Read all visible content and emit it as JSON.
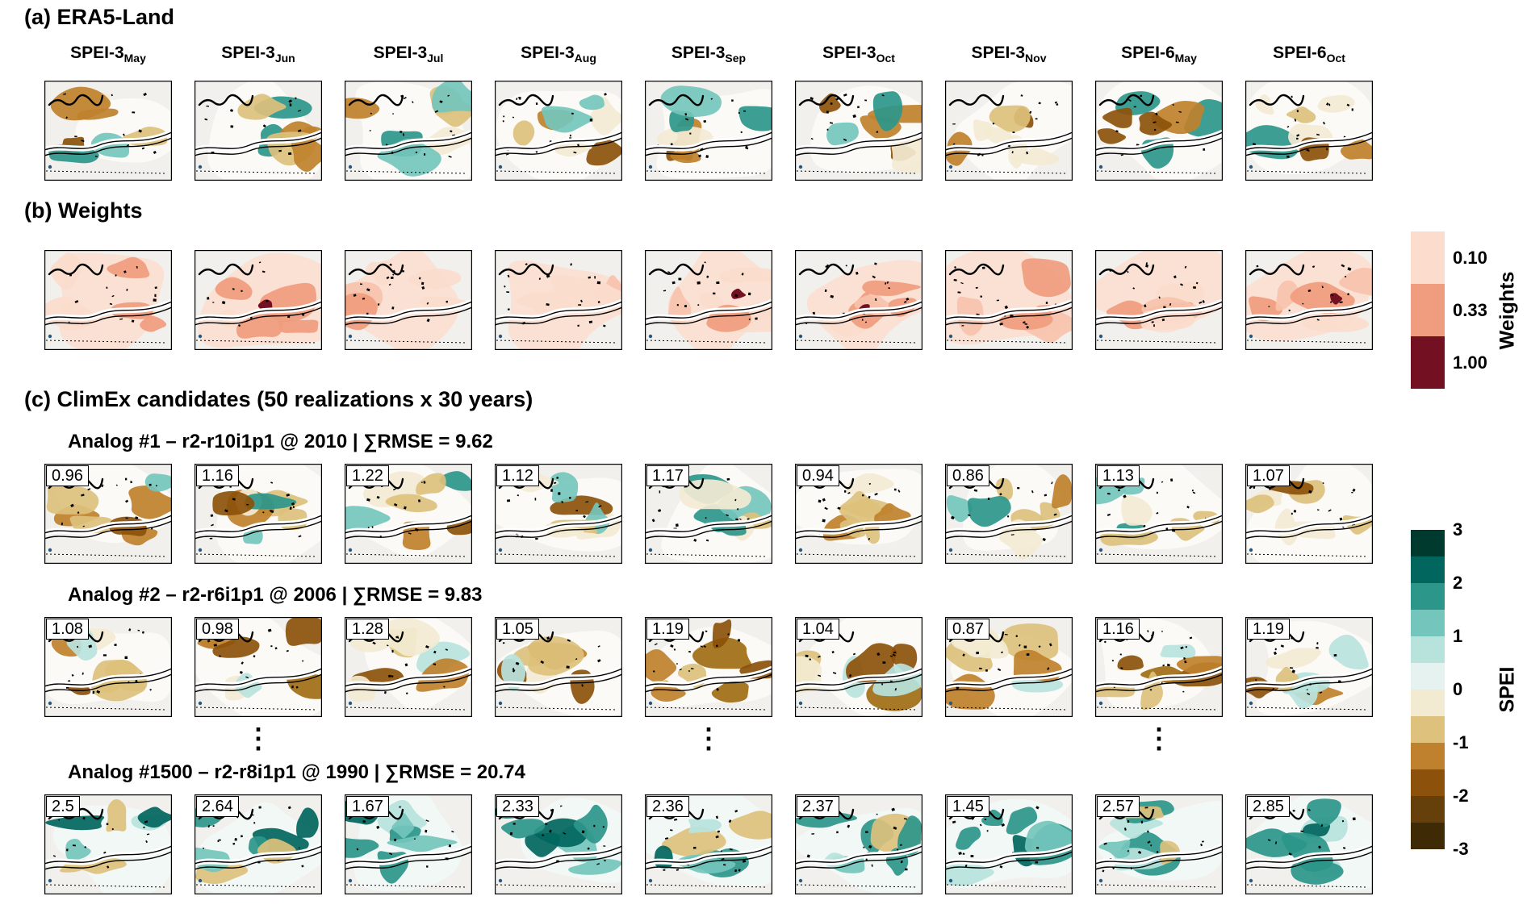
{
  "figure": {
    "panel_a_title": "(a) ERA5-Land",
    "panel_b_title": "(b) Weights",
    "panel_c_title": "(c) ClimEx candidates (50 realizations x 30 years)",
    "ellipsis": "⋮"
  },
  "columns": [
    {
      "base": "SPEI-3",
      "sub": "May"
    },
    {
      "base": "SPEI-3",
      "sub": "Jun"
    },
    {
      "base": "SPEI-3",
      "sub": "Jul"
    },
    {
      "base": "SPEI-3",
      "sub": "Aug"
    },
    {
      "base": "SPEI-3",
      "sub": "Sep"
    },
    {
      "base": "SPEI-3",
      "sub": "Oct"
    },
    {
      "base": "SPEI-3",
      "sub": "Nov"
    },
    {
      "base": "SPEI-6",
      "sub": "May"
    },
    {
      "base": "SPEI-6",
      "sub": "Oct"
    }
  ],
  "analogs": [
    {
      "label": "Analog #1 – r2-r10i1p1 @ 2010 | ∑RMSE = 9.62",
      "rmse": [
        "0.96",
        "1.16",
        "1.22",
        "1.12",
        "1.17",
        "0.94",
        "0.86",
        "1.13",
        "1.07"
      ]
    },
    {
      "label": "Analog #2 – r2-r6i1p1 @ 2006 | ∑RMSE = 9.83",
      "rmse": [
        "1.08",
        "0.98",
        "1.28",
        "1.05",
        "1.19",
        "1.04",
        "0.87",
        "1.16",
        "1.19"
      ]
    },
    {
      "label": "Analog #1500 – r2-r8i1p1 @ 1990 | ∑RMSE = 20.74",
      "rmse": [
        "2.5",
        "2.64",
        "1.67",
        "2.33",
        "2.36",
        "2.37",
        "1.45",
        "2.57",
        "2.85"
      ]
    }
  ],
  "colorbars": {
    "weights": {
      "label": "Weights",
      "ticks": [
        "0.10",
        "0.33",
        "1.00"
      ],
      "colors": [
        "#fbdccd",
        "#f09c7e",
        "#731022"
      ]
    },
    "spei": {
      "label": "SPEI",
      "ticks": [
        "3",
        "2",
        "1",
        "0",
        "-1",
        "-2",
        "-3"
      ],
      "colors": [
        "#00392e",
        "#01665e",
        "#2d968a",
        "#74c6bc",
        "#b8e3dd",
        "#e6f2ef",
        "#f3ead2",
        "#ddc17c",
        "#bf812d",
        "#8c510a",
        "#66400a",
        "#3f2a06"
      ]
    }
  },
  "chart_data": {
    "type": "heatmap",
    "panels": [
      {
        "id": "a",
        "title": "(a) ERA5-Land",
        "maps": [
          "SPEI-3 May",
          "SPEI-3 Jun",
          "SPEI-3 Jul",
          "SPEI-3 Aug",
          "SPEI-3 Sep",
          "SPEI-3 Oct",
          "SPEI-3 Nov",
          "SPEI-6 May",
          "SPEI-6 Oct"
        ],
        "variable": "SPEI",
        "value_range": [
          -3,
          3
        ]
      },
      {
        "id": "b",
        "title": "(b) Weights",
        "variable": "Weights",
        "levels": [
          0.1,
          0.33,
          1.0
        ]
      },
      {
        "id": "c",
        "title": "(c) ClimEx candidates (50 realizations x 30 years)",
        "analogs": [
          {
            "rank": 1,
            "member": "r2-r10i1p1",
            "year": 2010,
            "sum_rmse": 9.62,
            "rmse_per_map": [
              0.96,
              1.16,
              1.22,
              1.12,
              1.17,
              0.94,
              0.86,
              1.13,
              1.07
            ]
          },
          {
            "rank": 2,
            "member": "r2-r6i1p1",
            "year": 2006,
            "sum_rmse": 9.83,
            "rmse_per_map": [
              1.08,
              0.98,
              1.28,
              1.05,
              1.19,
              1.04,
              0.87,
              1.16,
              1.19
            ]
          },
          {
            "rank": 1500,
            "member": "r2-r8i1p1",
            "year": 1990,
            "sum_rmse": 20.74,
            "rmse_per_map": [
              2.5,
              2.64,
              1.67,
              2.33,
              2.36,
              2.37,
              1.45,
              2.57,
              2.85
            ]
          }
        ]
      }
    ],
    "colorbar_spei": {
      "label": "SPEI",
      "range": [
        -3,
        3
      ],
      "ticks": [
        3,
        2,
        1,
        0,
        -1,
        -2,
        -3
      ]
    },
    "colorbar_weights": {
      "label": "Weights",
      "ticks": [
        0.1,
        0.33,
        1.0
      ]
    },
    "row_styles": {
      "era5": {
        "domain": "#fbfaf7",
        "nblobs": 7,
        "palette": [
          "#8c510a",
          "#bf812d",
          "#bf812d",
          "#ddc17c",
          "#f3ead2",
          "#2d968a",
          "#74c6bc"
        ]
      },
      "weights": {
        "domain": "#fbe0d4",
        "nblobs": 5,
        "dark": "#731022",
        "dark_cells": [
          1,
          4,
          5,
          8
        ],
        "palette": [
          "#fbdccd",
          "#f7c3ac",
          "#f09c7e",
          "#fbdccd"
        ]
      },
      "analog1": {
        "domain": "#fbfaf7",
        "nblobs": 7,
        "palette": [
          "#8c510a",
          "#bf812d",
          "#ddc17c",
          "#f3ead2",
          "#74c6bc",
          "#2d968a",
          "#ddc17c"
        ]
      },
      "analog2": {
        "domain": "#fbfaf7",
        "nblobs": 7,
        "palette": [
          "#8c510a",
          "#bf812d",
          "#bf812d",
          "#ddc17c",
          "#a06c14",
          "#f3ead2",
          "#b8e3dd"
        ]
      },
      "analog1500": {
        "domain": "#f2f8f6",
        "nblobs": 7,
        "palette": [
          "#01665e",
          "#2d968a",
          "#2d968a",
          "#74c6bc",
          "#b8e3dd",
          "#ddc17c",
          "#2d968a"
        ]
      }
    }
  }
}
